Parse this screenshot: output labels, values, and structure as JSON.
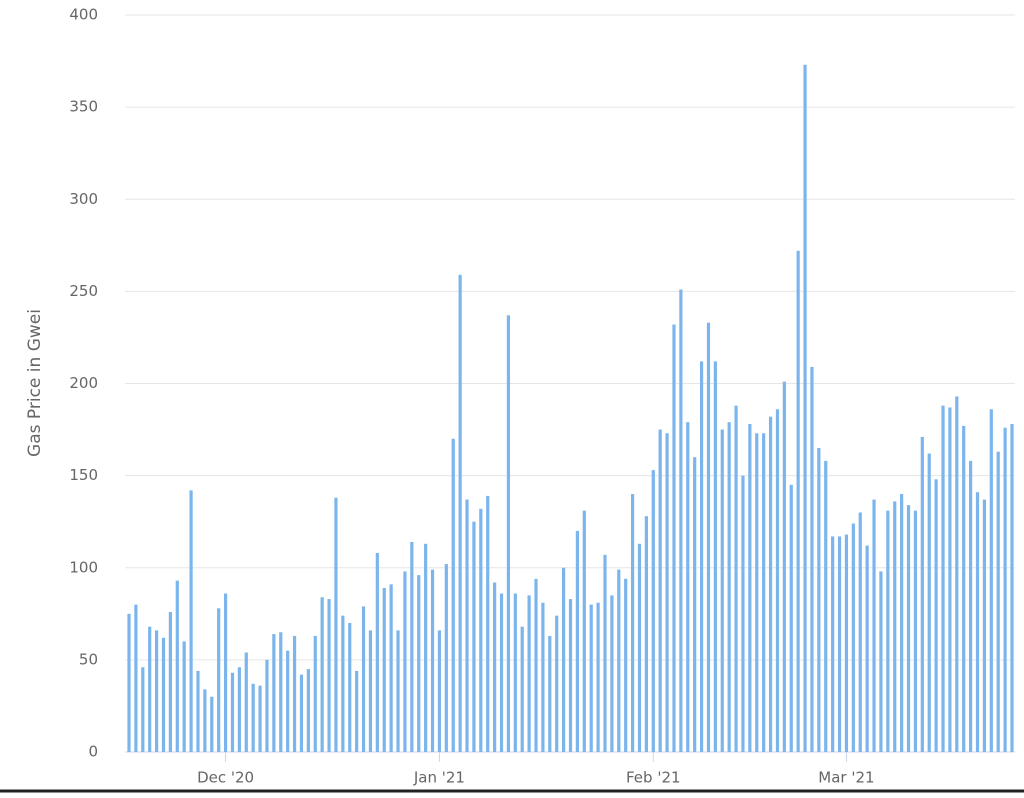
{
  "chart_data": {
    "type": "bar",
    "y_label": "Gas Price in Gwei",
    "categories": [
      null,
      null,
      null,
      null,
      null,
      null,
      null,
      null,
      null,
      null,
      null,
      null,
      null,
      null,
      "Dec '20",
      null,
      null,
      null,
      null,
      null,
      null,
      null,
      null,
      null,
      null,
      null,
      null,
      null,
      null,
      null,
      null,
      null,
      null,
      null,
      null,
      null,
      null,
      null,
      null,
      null,
      null,
      null,
      null,
      null,
      null,
      "Jan '21",
      null,
      null,
      null,
      null,
      null,
      null,
      null,
      null,
      null,
      null,
      null,
      null,
      null,
      null,
      null,
      null,
      null,
      null,
      null,
      null,
      null,
      null,
      null,
      null,
      null,
      null,
      null,
      null,
      null,
      null,
      "Feb '21",
      null,
      null,
      null,
      null,
      null,
      null,
      null,
      null,
      null,
      null,
      null,
      null,
      null,
      null,
      null,
      null,
      null,
      null,
      null,
      null,
      null,
      null,
      null,
      null,
      null,
      null,
      null,
      "Mar '21",
      null,
      null,
      null,
      null,
      null,
      null,
      null,
      null,
      null,
      null,
      null,
      null,
      null,
      null,
      null,
      null,
      null,
      null,
      null,
      null,
      null,
      null,
      null,
      null
    ],
    "values": [
      75,
      80,
      46,
      68,
      66,
      62,
      76,
      93,
      60,
      142,
      44,
      34,
      30,
      78,
      86,
      43,
      46,
      54,
      37,
      36,
      50,
      64,
      65,
      55,
      63,
      42,
      45,
      63,
      84,
      83,
      138,
      74,
      70,
      44,
      79,
      66,
      108,
      89,
      91,
      66,
      98,
      114,
      96,
      113,
      99,
      66,
      102,
      170,
      259,
      137,
      125,
      132,
      139,
      92,
      86,
      237,
      86,
      68,
      85,
      94,
      81,
      63,
      74,
      100,
      83,
      120,
      131,
      80,
      81,
      107,
      85,
      99,
      94,
      140,
      113,
      128,
      153,
      175,
      173,
      232,
      251,
      179,
      160,
      212,
      233,
      212,
      175,
      179,
      188,
      150,
      178,
      173,
      173,
      182,
      186,
      201,
      145,
      272,
      373,
      209,
      165,
      158,
      117,
      117,
      118,
      124,
      130,
      112,
      137,
      98,
      131,
      136,
      140,
      134,
      131,
      171,
      162,
      148,
      188,
      187,
      193,
      177,
      158,
      141,
      137,
      186,
      163,
      176,
      178
    ],
    "color": "#7cb5ec",
    "ylim": [
      0,
      400
    ],
    "yticks": [
      0,
      50,
      100,
      150,
      200,
      250,
      300,
      350,
      400
    ],
    "grid": true
  }
}
